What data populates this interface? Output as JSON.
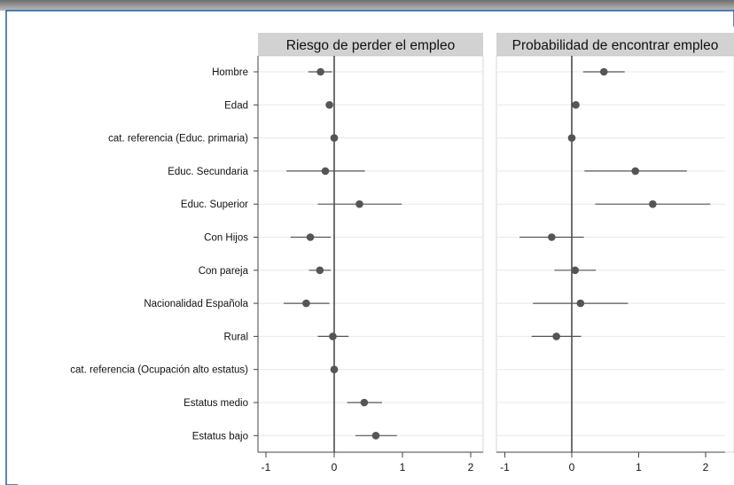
{
  "chart_data": {
    "type": "scatter",
    "subtype": "coefficient-plot",
    "categories": [
      "Hombre",
      "Edad",
      "cat. referencia (Educ. primaria)",
      "Educ. Secundaria",
      "Educ. Superior",
      "Con Hijos",
      "Con pareja",
      "Nacionalidad Española",
      "Rural",
      "cat. referencia (Ocupación alto estatus)",
      "Estatus medio",
      "Estatus bajo"
    ],
    "panels": [
      {
        "title": "Riesgo de perder el empleo",
        "xticks": [
          "-1",
          "0",
          "1",
          "2"
        ],
        "xlim": [
          -1.1,
          2.2
        ],
        "estimates": [
          -0.2,
          -0.07,
          0.0,
          -0.13,
          0.37,
          -0.35,
          -0.21,
          -0.41,
          -0.02,
          0.0,
          0.44,
          0.61
        ],
        "ci_low": [
          -0.38,
          -0.07,
          0.0,
          -0.7,
          -0.24,
          -0.64,
          -0.37,
          -0.74,
          -0.24,
          0.0,
          0.19,
          0.31
        ],
        "ci_high": [
          -0.03,
          -0.07,
          0.0,
          0.45,
          0.99,
          -0.05,
          -0.05,
          -0.07,
          0.21,
          0.0,
          0.7,
          0.92
        ]
      },
      {
        "title": "Probabilidad de encontrar empleo",
        "xticks": [
          "-1",
          "0",
          "1",
          "2"
        ],
        "xlim": [
          -1.1,
          2.2
        ],
        "estimates": [
          0.48,
          0.06,
          0.0,
          0.95,
          1.21,
          -0.3,
          0.05,
          0.13,
          -0.23,
          null,
          null,
          null
        ],
        "ci_low": [
          0.17,
          0.06,
          0.0,
          0.19,
          0.35,
          -0.78,
          -0.26,
          -0.58,
          -0.6,
          null,
          null,
          null
        ],
        "ci_high": [
          0.79,
          0.06,
          0.0,
          1.72,
          2.07,
          0.18,
          0.36,
          0.84,
          0.14,
          null,
          null,
          null
        ]
      }
    ],
    "colors": {
      "marker": "#555555",
      "ci_line": "#555555",
      "zero_line": "#222222",
      "panel_header": "#d2d2d2",
      "grid": "#e8e8e8",
      "border": "#1f5ea8"
    }
  }
}
